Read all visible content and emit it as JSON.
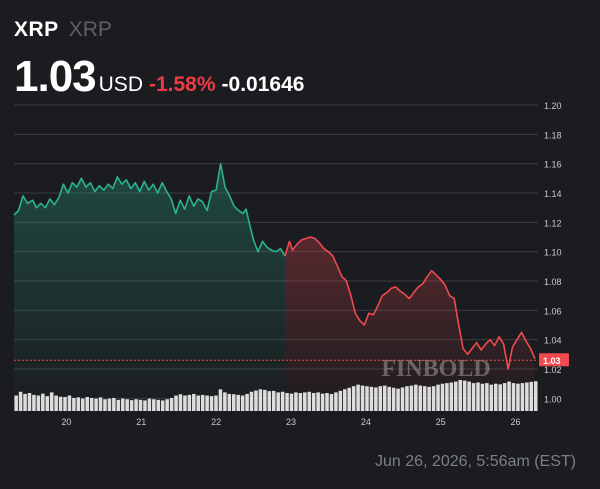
{
  "header": {
    "symbol": "XRP",
    "name": "XRP",
    "price": "1.03",
    "currency": "USD",
    "change_pct": "-1.58%",
    "change_abs": "-0.01646"
  },
  "watermark": "FINBOLD",
  "timestamp": "Jun 26, 2026, 5:56am (EST)",
  "colors": {
    "up": "#2bb391",
    "down": "#ef4a50",
    "background": "#1b1c1f",
    "volume": "#ffffff",
    "price_label": "#ef4a50"
  },
  "chart_data": {
    "type": "line",
    "title": "",
    "xlabel": "",
    "ylabel": "",
    "ylim": [
      0.99,
      1.2
    ],
    "xlim": [
      19.3,
      26.3
    ],
    "y_ticks": [
      "1.20",
      "1.18",
      "1.16",
      "1.14",
      "1.12",
      "1.10",
      "1.08",
      "1.06",
      "1.04",
      "1.02",
      "1.00"
    ],
    "x_ticks": [
      {
        "value": 20,
        "label": "20"
      },
      {
        "value": 21,
        "label": "21"
      },
      {
        "value": 22,
        "label": "22"
      },
      {
        "value": 23,
        "label": "23"
      },
      {
        "value": 24,
        "label": "24"
      },
      {
        "value": 25,
        "label": "25"
      },
      {
        "value": 26,
        "label": "26"
      }
    ],
    "current_price": 1.026,
    "current_price_label": "1.03",
    "grid": true,
    "y_axis_position": "right",
    "series": [
      {
        "x": [
          19.3,
          19.36,
          19.42,
          19.48,
          19.55,
          19.6,
          19.66,
          19.72,
          19.78,
          19.84,
          19.9,
          19.96,
          20.02,
          20.08,
          20.14,
          20.2,
          20.26,
          20.32,
          20.38,
          20.44,
          20.5,
          20.56,
          20.62,
          20.68,
          20.74,
          20.8,
          20.86,
          20.92,
          20.98,
          21.04,
          21.1,
          21.16,
          21.22,
          21.28,
          21.34,
          21.4,
          21.46,
          21.52,
          21.58,
          21.64,
          21.7,
          21.76,
          21.82,
          21.88,
          21.94,
          22.0,
          22.06,
          22.12,
          22.18,
          22.24,
          22.3,
          22.36,
          22.4,
          22.44,
          22.5,
          22.56,
          22.62,
          22.68,
          22.74,
          22.8,
          22.86,
          22.92,
          22.98,
          23.02,
          23.08,
          23.14,
          23.2,
          23.26,
          23.32,
          23.38,
          23.44,
          23.5,
          23.56,
          23.62,
          23.68,
          23.74,
          23.8,
          23.86,
          23.92,
          23.98,
          24.04,
          24.1,
          24.16,
          24.22,
          24.28,
          24.34,
          24.4,
          24.46,
          24.52,
          24.58,
          24.64,
          24.7,
          24.76,
          24.82,
          24.88,
          24.94,
          25.0,
          25.06,
          25.12,
          25.18,
          25.24,
          25.3,
          25.36,
          25.42,
          25.48,
          25.54,
          25.6,
          25.66,
          25.72,
          25.78,
          25.84,
          25.9,
          25.96,
          26.02,
          26.08,
          26.14,
          26.2,
          26.26
        ],
        "y": [
          1.125,
          1.128,
          1.138,
          1.133,
          1.135,
          1.13,
          1.133,
          1.13,
          1.136,
          1.132,
          1.137,
          1.146,
          1.14,
          1.147,
          1.144,
          1.15,
          1.144,
          1.147,
          1.141,
          1.145,
          1.142,
          1.146,
          1.143,
          1.151,
          1.146,
          1.149,
          1.143,
          1.147,
          1.141,
          1.148,
          1.142,
          1.146,
          1.14,
          1.147,
          1.141,
          1.136,
          1.126,
          1.135,
          1.129,
          1.138,
          1.131,
          1.136,
          1.134,
          1.128,
          1.141,
          1.142,
          1.16,
          1.144,
          1.138,
          1.131,
          1.128,
          1.126,
          1.129,
          1.12,
          1.108,
          1.1,
          1.107,
          1.103,
          1.101,
          1.1,
          1.102,
          1.097,
          1.107,
          1.101,
          1.105,
          1.108,
          1.109,
          1.11,
          1.109,
          1.106,
          1.102,
          1.1,
          1.097,
          1.09,
          1.083,
          1.08,
          1.07,
          1.058,
          1.053,
          1.05,
          1.058,
          1.057,
          1.063,
          1.07,
          1.072,
          1.075,
          1.076,
          1.073,
          1.071,
          1.068,
          1.072,
          1.076,
          1.078,
          1.083,
          1.087,
          1.084,
          1.081,
          1.077,
          1.07,
          1.068,
          1.05,
          1.034,
          1.03,
          1.034,
          1.038,
          1.033,
          1.037,
          1.04,
          1.036,
          1.042,
          1.037,
          1.02,
          1.035,
          1.04,
          1.045,
          1.039,
          1.034,
          1.027
        ]
      }
    ],
    "volume_series": [
      0.5,
      0.62,
      0.55,
      0.58,
      0.52,
      0.5,
      0.56,
      0.48,
      0.6,
      0.5,
      0.46,
      0.45,
      0.5,
      0.42,
      0.44,
      0.4,
      0.45,
      0.42,
      0.4,
      0.44,
      0.38,
      0.4,
      0.42,
      0.36,
      0.4,
      0.38,
      0.35,
      0.38,
      0.36,
      0.34,
      0.4,
      0.38,
      0.36,
      0.34,
      0.38,
      0.42,
      0.5,
      0.54,
      0.5,
      0.52,
      0.55,
      0.5,
      0.52,
      0.5,
      0.48,
      0.5,
      0.7,
      0.6,
      0.55,
      0.54,
      0.52,
      0.5,
      0.55,
      0.62,
      0.66,
      0.7,
      0.68,
      0.64,
      0.65,
      0.6,
      0.62,
      0.58,
      0.56,
      0.6,
      0.58,
      0.6,
      0.62,
      0.58,
      0.6,
      0.56,
      0.58,
      0.55,
      0.6,
      0.65,
      0.7,
      0.75,
      0.8,
      0.85,
      0.82,
      0.8,
      0.78,
      0.76,
      0.8,
      0.82,
      0.78,
      0.75,
      0.72,
      0.76,
      0.8,
      0.82,
      0.85,
      0.82,
      0.8,
      0.78,
      0.8,
      0.85,
      0.88,
      0.9,
      0.92,
      0.95,
      1.0,
      0.98,
      0.95,
      0.9,
      0.92,
      0.88,
      0.9,
      0.85,
      0.88,
      0.86,
      0.9,
      0.95,
      0.9,
      0.88,
      0.9,
      0.92,
      0.94,
      0.96
    ]
  }
}
